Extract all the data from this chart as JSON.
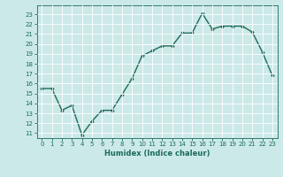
{
  "x": [
    0,
    1,
    2,
    3,
    4,
    5,
    6,
    7,
    8,
    9,
    10,
    11,
    12,
    13,
    14,
    15,
    16,
    17,
    18,
    19,
    20,
    21,
    22,
    23
  ],
  "y": [
    15.5,
    15.5,
    13.3,
    13.8,
    10.8,
    12.2,
    13.3,
    13.3,
    14.9,
    16.5,
    18.8,
    19.3,
    19.8,
    19.8,
    21.1,
    21.1,
    23.1,
    21.5,
    21.8,
    21.8,
    21.8,
    21.2,
    19.2,
    16.8
  ],
  "line_color": "#1a6b5a",
  "marker": "D",
  "marker_size": 1.8,
  "linewidth": 1.0,
  "bg_color": "#cce9e9",
  "grid_color": "#b0d4d4",
  "tick_color": "#1a6b5a",
  "label_color": "#1a6b5a",
  "xlabel": "Humidex (Indice chaleur)",
  "ylim": [
    10.5,
    23.9
  ],
  "xlim": [
    -0.5,
    23.5
  ],
  "yticks": [
    11,
    12,
    13,
    14,
    15,
    16,
    17,
    18,
    19,
    20,
    21,
    22,
    23
  ],
  "xticks": [
    0,
    1,
    2,
    3,
    4,
    5,
    6,
    7,
    8,
    9,
    10,
    11,
    12,
    13,
    14,
    15,
    16,
    17,
    18,
    19,
    20,
    21,
    22,
    23
  ],
  "tick_fontsize": 5.0,
  "xlabel_fontsize": 6.0
}
